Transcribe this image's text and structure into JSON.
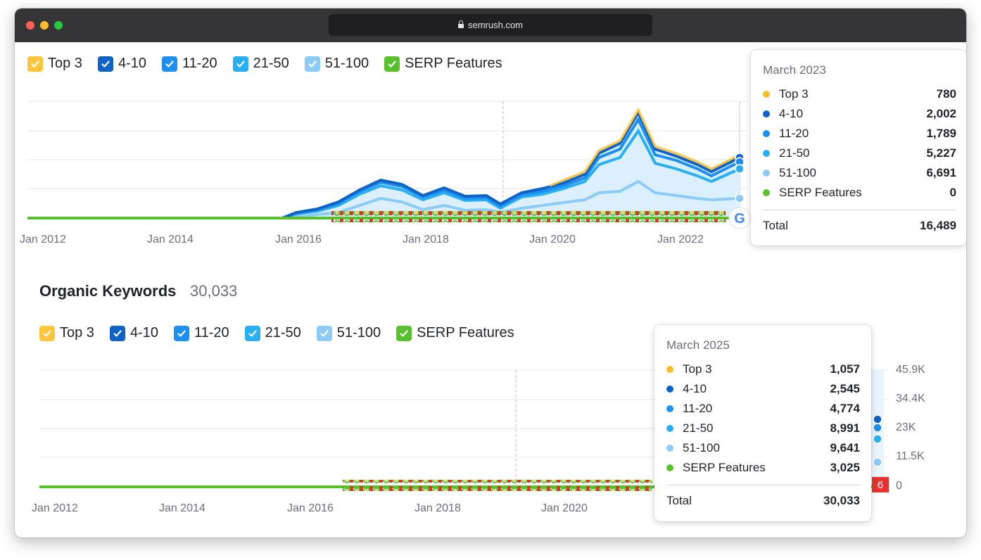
{
  "browser": {
    "url": "semrush.com"
  },
  "legend": [
    {
      "label": "Top 3",
      "color": "#ffc53d"
    },
    {
      "label": "4-10",
      "color": "#0f63c6"
    },
    {
      "label": "11-20",
      "color": "#1c8ff0"
    },
    {
      "label": "21-50",
      "color": "#28aff3"
    },
    {
      "label": "51-100",
      "color": "#8dcbf7"
    },
    {
      "label": "SERP Features",
      "color": "#59c02d"
    }
  ],
  "top_chart": {
    "x_labels": [
      "Jan 2012",
      "Jan 2014",
      "Jan 2016",
      "Jan 2018",
      "Jan 2020",
      "Jan 2022"
    ],
    "tooltip": {
      "title": "March 2023",
      "rows": [
        {
          "label": "Top 3",
          "value": "780",
          "color": "#f7bd2c"
        },
        {
          "label": "4-10",
          "value": "2,002",
          "color": "#0f63c6"
        },
        {
          "label": "11-20",
          "value": "1,789",
          "color": "#1c8ff0"
        },
        {
          "label": "21-50",
          "value": "5,227",
          "color": "#28aff3"
        },
        {
          "label": "51-100",
          "value": "6,691",
          "color": "#8dcbf7"
        },
        {
          "label": "SERP Features",
          "value": "0",
          "color": "#59c02d"
        }
      ],
      "total_label": "Total",
      "total_value": "16,489"
    }
  },
  "organic": {
    "title": "Organic Keywords",
    "count": "30,033",
    "x_labels": [
      "Jan 2012",
      "Jan 2014",
      "Jan 2016",
      "Jan 2018",
      "Jan 2020"
    ],
    "y_labels": [
      "45.9K",
      "34.4K",
      "23K",
      "11.5K",
      "0"
    ],
    "badge": "6",
    "tooltip": {
      "title": "March 2025",
      "rows": [
        {
          "label": "Top 3",
          "value": "1,057",
          "color": "#f7bd2c"
        },
        {
          "label": "4-10",
          "value": "2,545",
          "color": "#0f63c6"
        },
        {
          "label": "11-20",
          "value": "4,774",
          "color": "#1c8ff0"
        },
        {
          "label": "21-50",
          "value": "8,991",
          "color": "#28aff3"
        },
        {
          "label": "51-100",
          "value": "9,641",
          "color": "#8dcbf7"
        },
        {
          "label": "SERP Features",
          "value": "3,025",
          "color": "#59c02d"
        }
      ],
      "total_label": "Total",
      "total_value": "30,033"
    }
  }
}
